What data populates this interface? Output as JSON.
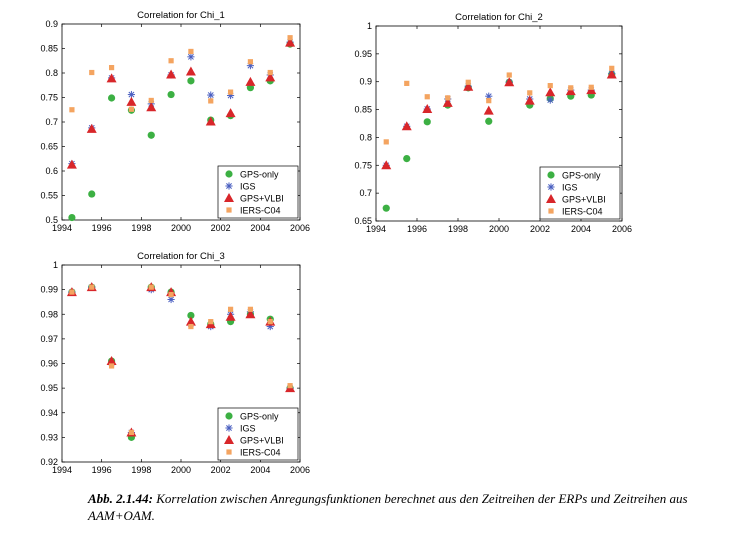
{
  "caption": {
    "label": "Abb. 2.1.44:",
    "text": "Korrelation zwischen Anregungsfunktionen berechnet aus den Zeitreihen der ERPs und Zeitreihen aus AAM+OAM."
  },
  "legend_entries": [
    "GPS-only",
    "IGS",
    "GPS+VLBI",
    "IERS-C04"
  ],
  "colors": {
    "GPS-only": "#3cb043",
    "IGS": "#4a5fc1",
    "GPS+VLBI": "#d8262a",
    "IERS-C04": "#f4a460"
  },
  "chart_data": [
    {
      "type": "scatter",
      "title": "Correlation for Chi_1",
      "xlim": [
        1994,
        2006
      ],
      "ylim": [
        0.5,
        0.9
      ],
      "xticks": [
        1994,
        1996,
        1998,
        2000,
        2002,
        2004,
        2006
      ],
      "yticks": [
        0.5,
        0.55,
        0.6,
        0.65,
        0.7,
        0.75,
        0.8,
        0.85,
        0.9
      ],
      "ytick_labels": [
        "0.5",
        "0.55",
        "0.6",
        "0.65",
        "0.7",
        "0.75",
        "0.8",
        "0.85",
        "0.9"
      ],
      "legend": "bottom-right",
      "x": [
        1994.5,
        1995.5,
        1996.5,
        1997.5,
        1998.5,
        1999.5,
        2000.5,
        2001.5,
        2002.5,
        2003.5,
        2004.5,
        2005.5
      ],
      "series": [
        {
          "name": "GPS-only",
          "values": [
            0.505,
            0.553,
            0.749,
            0.724,
            0.673,
            0.756,
            0.784,
            0.704,
            0.713,
            0.77,
            0.784,
            0.859
          ]
        },
        {
          "name": "IGS",
          "values": [
            0.615,
            0.688,
            0.79,
            0.756,
            0.737,
            0.796,
            0.833,
            0.755,
            0.754,
            0.815,
            0.796,
            0.863
          ]
        },
        {
          "name": "GPS+VLBI",
          "values": [
            0.613,
            0.686,
            0.789,
            0.741,
            0.73,
            0.797,
            0.803,
            0.701,
            0.718,
            0.782,
            0.791,
            0.862
          ]
        },
        {
          "name": "IERS-C04",
          "values": [
            0.725,
            0.801,
            0.811,
            0.726,
            0.744,
            0.825,
            0.844,
            0.743,
            0.761,
            0.823,
            0.801,
            0.872
          ]
        }
      ]
    },
    {
      "type": "scatter",
      "title": "Correlation for Chi_2",
      "xlim": [
        1994,
        2006
      ],
      "ylim": [
        0.65,
        1
      ],
      "xticks": [
        1994,
        1996,
        1998,
        2000,
        2002,
        2004,
        2006
      ],
      "yticks": [
        0.65,
        0.7,
        0.75,
        0.8,
        0.85,
        0.9,
        0.95,
        1
      ],
      "ytick_labels": [
        "0.65",
        "0.7",
        "0.75",
        "0.8",
        "0.85",
        "0.9",
        "0.95",
        "1"
      ],
      "legend": "bottom-right",
      "x": [
        1994.5,
        1995.5,
        1996.5,
        1997.5,
        1998.5,
        1999.5,
        2000.5,
        2001.5,
        2002.5,
        2003.5,
        2004.5,
        2005.5
      ],
      "series": [
        {
          "name": "GPS-only",
          "values": [
            0.673,
            0.762,
            0.828,
            0.858,
            0.889,
            0.829,
            0.899,
            0.858,
            0.87,
            0.874,
            0.876,
            0.913
          ]
        },
        {
          "name": "IGS",
          "values": [
            0.75,
            0.82,
            0.851,
            0.869,
            0.892,
            0.874,
            0.899,
            0.869,
            0.867,
            0.885,
            0.885,
            0.915
          ]
        },
        {
          "name": "GPS+VLBI",
          "values": [
            0.75,
            0.82,
            0.851,
            0.862,
            0.891,
            0.848,
            0.899,
            0.866,
            0.881,
            0.883,
            0.885,
            0.913
          ]
        },
        {
          "name": "IERS-C04",
          "values": [
            0.792,
            0.897,
            0.873,
            0.871,
            0.899,
            0.866,
            0.912,
            0.88,
            0.893,
            0.889,
            0.89,
            0.924
          ]
        }
      ]
    },
    {
      "type": "scatter",
      "title": "Correlation for Chi_3",
      "xlim": [
        1994,
        2006
      ],
      "ylim": [
        0.92,
        1
      ],
      "xticks": [
        1994,
        1996,
        1998,
        2000,
        2002,
        2004,
        2006
      ],
      "yticks": [
        0.92,
        0.93,
        0.94,
        0.95,
        0.96,
        0.97,
        0.98,
        0.99,
        1
      ],
      "ytick_labels": [
        "0.92",
        "0.93",
        "0.94",
        "0.95",
        "0.96",
        "0.97",
        "0.98",
        "0.99",
        "1"
      ],
      "legend": "bottom-right",
      "x": [
        1994.5,
        1995.5,
        1996.5,
        1997.5,
        1998.5,
        1999.5,
        2000.5,
        2001.5,
        2002.5,
        2003.5,
        2004.5,
        2005.5
      ],
      "series": [
        {
          "name": "GPS-only",
          "values": [
            0.989,
            0.991,
            0.961,
            0.93,
            0.991,
            0.989,
            0.9795,
            0.976,
            0.977,
            0.98,
            0.978,
            0.95
          ]
        },
        {
          "name": "IGS",
          "values": [
            0.989,
            0.991,
            0.96,
            0.932,
            0.99,
            0.986,
            0.976,
            0.975,
            0.98,
            0.981,
            0.975,
            0.95
          ]
        },
        {
          "name": "GPS+VLBI",
          "values": [
            0.989,
            0.991,
            0.961,
            0.932,
            0.991,
            0.989,
            0.977,
            0.976,
            0.979,
            0.98,
            0.977,
            0.95
          ]
        },
        {
          "name": "IERS-C04",
          "values": [
            0.989,
            0.991,
            0.959,
            0.932,
            0.991,
            0.988,
            0.975,
            0.977,
            0.982,
            0.982,
            0.977,
            0.951
          ]
        }
      ]
    }
  ]
}
